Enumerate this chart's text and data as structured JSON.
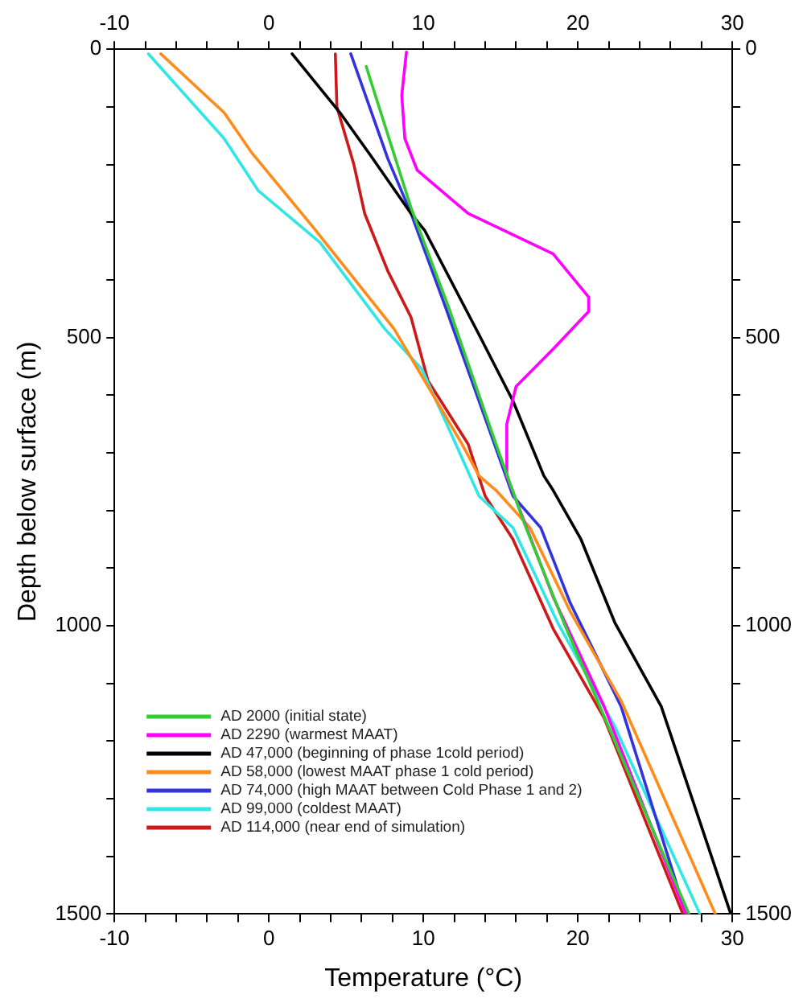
{
  "chart_data": {
    "type": "line",
    "xlabel": "Temperature (°C)",
    "ylabel": "Depth below surface (m)",
    "xlim": [
      -10,
      30
    ],
    "xticks": [
      -10,
      {
        "value": -8,
        "label": null
      },
      {
        "value": -6,
        "label": null
      },
      {
        "value": -4,
        "label": null
      },
      {
        "value": -2,
        "label": null
      },
      0,
      {
        "value": 2,
        "label": null
      },
      {
        "value": 4,
        "label": null
      },
      {
        "value": 6,
        "label": null
      },
      {
        "value": 8,
        "label": null
      },
      10,
      {
        "value": 12,
        "label": null
      },
      {
        "value": 14,
        "label": null
      },
      {
        "value": 16,
        "label": null
      },
      {
        "value": 18,
        "label": null
      },
      20,
      {
        "value": 22,
        "label": null
      },
      {
        "value": 24,
        "label": null
      },
      {
        "value": 26,
        "label": null
      },
      {
        "value": 28,
        "label": null
      },
      30
    ],
    "x2lim": [
      -10,
      30
    ],
    "x2ticks": [
      -10,
      {
        "value": -8,
        "label": null
      },
      {
        "value": -6,
        "label": null
      },
      {
        "value": -4,
        "label": null
      },
      {
        "value": -2,
        "label": null
      },
      0,
      {
        "value": 2,
        "label": null
      },
      {
        "value": 4,
        "label": null
      },
      {
        "value": 6,
        "label": null
      },
      {
        "value": 8,
        "label": null
      },
      10,
      {
        "value": 12,
        "label": null
      },
      {
        "value": 14,
        "label": null
      },
      {
        "value": 16,
        "label": null
      },
      {
        "value": 18,
        "label": null
      },
      20,
      {
        "value": 22,
        "label": null
      },
      {
        "value": 24,
        "label": null
      },
      {
        "value": 26,
        "label": null
      },
      {
        "value": 28,
        "label": null
      },
      30
    ],
    "ylim": [
      1500,
      0
    ],
    "yticks": [
      0,
      {
        "value": 100,
        "label": null
      },
      {
        "value": 200,
        "label": null
      },
      {
        "value": 300,
        "label": null
      },
      {
        "value": 400,
        "label": null
      },
      500,
      {
        "value": 600,
        "label": null
      },
      {
        "value": 700,
        "label": null
      },
      {
        "value": 800,
        "label": null
      },
      {
        "value": 900,
        "label": null
      },
      1000,
      {
        "value": 1100,
        "label": null
      },
      {
        "value": 1200,
        "label": null
      },
      {
        "value": 1300,
        "label": null
      },
      {
        "value": 1400,
        "label": null
      },
      1500
    ],
    "y2lim": [
      1500,
      0
    ],
    "y2ticks": [
      0,
      {
        "value": 100,
        "label": null
      },
      {
        "value": 200,
        "label": null
      },
      {
        "value": 300,
        "label": null
      },
      {
        "value": 400,
        "label": null
      },
      500,
      {
        "value": 600,
        "label": null
      },
      {
        "value": 700,
        "label": null
      },
      {
        "value": 800,
        "label": null
      },
      {
        "value": 900,
        "label": null
      },
      1000,
      {
        "value": 1100,
        "label": null
      },
      {
        "value": 1200,
        "label": null
      },
      {
        "value": 1300,
        "label": null
      },
      {
        "value": 1400,
        "label": null
      },
      1500
    ],
    "grid": false,
    "legend": "bottom left",
    "marker": "none",
    "line_style": "solid",
    "series": [
      {
        "name": "AD 2000 (initial state)",
        "color": "#33cc33",
        "x": [
          6.3,
          9.2,
          11.6,
          14.7,
          16.5,
          19.1,
          27.2
        ],
        "values": [
          30,
          275,
          445,
          685,
          820,
          995,
          1500
        ]
      },
      {
        "name": "AD 2290 (warmest MAAT)",
        "color": "#ff00ff",
        "x": [
          8.9,
          8.6,
          8.8,
          9.6,
          12.9,
          18.4,
          20.7,
          20.7,
          18.4,
          16.0,
          15.4,
          15.4,
          18.4,
          21.7,
          27.0
        ],
        "values": [
          5,
          80,
          155,
          210,
          285,
          355,
          430,
          455,
          520,
          585,
          650,
          740,
          950,
          1140,
          1500
        ]
      },
      {
        "name": "AD 47,000 (beginning of phase 1cold period)",
        "color": "#000000",
        "x": [
          1.5,
          4.6,
          6.6,
          9.2,
          10.1,
          13.6,
          15.8,
          17.8,
          18.4,
          20.2,
          22.4,
          25.4,
          29.9
        ],
        "values": [
          8,
          110,
          185,
          285,
          315,
          495,
          610,
          740,
          765,
          850,
          995,
          1140,
          1500
        ]
      },
      {
        "name": "AD 58,000 (lowest MAAT phase 1 cold period)",
        "color": "#ff8c1a",
        "x": [
          -7.0,
          -2.9,
          -1.1,
          2.9,
          8.1,
          12.5,
          13.6,
          14.7,
          16.9,
          19.5,
          22.8,
          28.9
        ],
        "values": [
          8,
          110,
          180,
          310,
          485,
          685,
          740,
          765,
          830,
          975,
          1130,
          1500
        ]
      },
      {
        "name": "AD 74,000 (high MAAT between Cold Phase 1 and 2)",
        "color": "#3333dd",
        "x": [
          5.3,
          7.7,
          9.2,
          11.4,
          15.8,
          17.6,
          19.5,
          22.8,
          27.0
        ],
        "values": [
          8,
          190,
          285,
          445,
          775,
          830,
          960,
          1140,
          1500
        ]
      },
      {
        "name": "AD 99,000 (coldest MAAT)",
        "color": "#33e6e6",
        "x": [
          -7.8,
          -2.9,
          -0.7,
          3.3,
          7.5,
          9.9,
          12.1,
          13.6,
          15.8,
          18.7,
          22.4,
          27.9
        ],
        "values": [
          8,
          155,
          245,
          335,
          485,
          555,
          685,
          775,
          830,
          995,
          1175,
          1500
        ]
      },
      {
        "name": "AD 114,000 (near end of simulation)",
        "color": "#cc1a1a",
        "x": [
          4.3,
          4.4,
          5.5,
          6.2,
          7.7,
          9.2,
          10.3,
          12.9,
          14.0,
          15.8,
          18.4,
          21.7,
          26.8
        ],
        "values": [
          8,
          100,
          200,
          285,
          385,
          465,
          575,
          685,
          775,
          850,
          1005,
          1160,
          1500
        ]
      }
    ]
  }
}
